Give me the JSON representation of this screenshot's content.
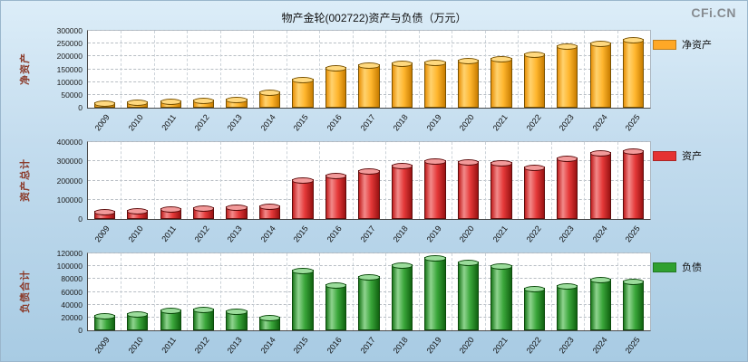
{
  "header": {
    "title": "物产金轮(002722)资产与负债（万元）",
    "watermark": "CFi.CN"
  },
  "chart_data": [
    {
      "type": "bar",
      "ylabel": "净资产",
      "legend": "净资产",
      "color": "#FFA826",
      "categories": [
        "2009",
        "2010",
        "2011",
        "2012",
        "2013",
        "2014",
        "2015",
        "2016",
        "2017",
        "2018",
        "2019",
        "2020",
        "2021",
        "2022",
        "2023",
        "2024",
        "2025"
      ],
      "values": [
        21000,
        23000,
        27000,
        31000,
        37000,
        62000,
        113000,
        160000,
        168000,
        177000,
        181000,
        186000,
        194000,
        211000,
        243000,
        253000,
        268000
      ],
      "ylim": [
        0,
        300000
      ],
      "yticks": [
        0,
        50000,
        100000,
        150000,
        200000,
        250000,
        300000
      ],
      "grid": true,
      "legend_position": "right"
    },
    {
      "type": "bar",
      "ylabel": "资产总计",
      "legend": "资产",
      "color": "#E53232",
      "categories": [
        "2009",
        "2010",
        "2011",
        "2012",
        "2013",
        "2014",
        "2015",
        "2016",
        "2017",
        "2018",
        "2019",
        "2020",
        "2021",
        "2022",
        "2023",
        "2024",
        "2025"
      ],
      "values": [
        42000,
        48000,
        57000,
        62000,
        67000,
        73000,
        205000,
        232000,
        255000,
        283000,
        308000,
        300000,
        298000,
        272000,
        322000,
        348000,
        358000
      ],
      "ylim": [
        0,
        400000
      ],
      "yticks": [
        0,
        100000,
        200000,
        300000,
        400000
      ],
      "grid": true,
      "legend_position": "right"
    },
    {
      "type": "bar",
      "ylabel": "负债合计",
      "legend": "负债",
      "color": "#2FA02F",
      "categories": [
        "2009",
        "2010",
        "2011",
        "2012",
        "2013",
        "2014",
        "2015",
        "2016",
        "2017",
        "2018",
        "2019",
        "2020",
        "2021",
        "2022",
        "2023",
        "2024",
        "2025"
      ],
      "values": [
        24000,
        27000,
        32000,
        34000,
        31000,
        21000,
        95000,
        72000,
        85000,
        103000,
        114000,
        108000,
        101000,
        66000,
        71000,
        81000,
        77000
      ],
      "ylim": [
        0,
        120000
      ],
      "yticks": [
        0,
        20000,
        40000,
        60000,
        80000,
        100000,
        120000
      ],
      "grid": true,
      "legend_position": "right"
    }
  ]
}
